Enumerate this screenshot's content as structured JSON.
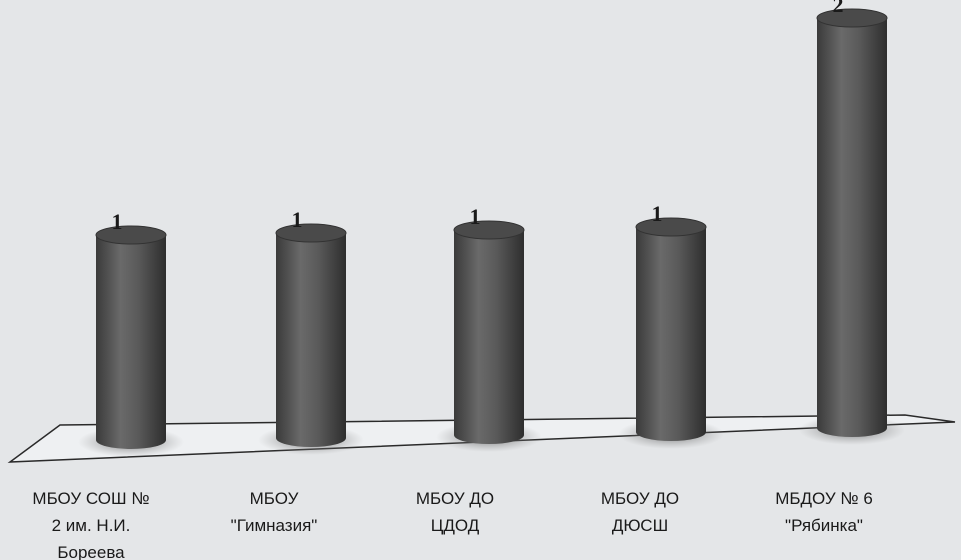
{
  "chart_data": {
    "type": "bar",
    "style": "3d-cylinder",
    "categories": [
      [
        "МБОУ СОШ №",
        "2 им. Н.И.",
        "Бореева"
      ],
      [
        "МБОУ",
        "\"Гимназия\""
      ],
      [
        "МБОУ ДО",
        "ЦДОД"
      ],
      [
        "МБОУ ДО",
        "ДЮСШ"
      ],
      [
        "МБДОУ № 6",
        "\"Рябинка\""
      ]
    ],
    "values": [
      1,
      1,
      1,
      1,
      2
    ],
    "ylim": [
      0,
      2
    ],
    "grid": false,
    "legend": "none",
    "colors": {
      "bar": "#5b5b5b",
      "floor": "#eef0f2",
      "text": "#1a1a1a"
    }
  }
}
